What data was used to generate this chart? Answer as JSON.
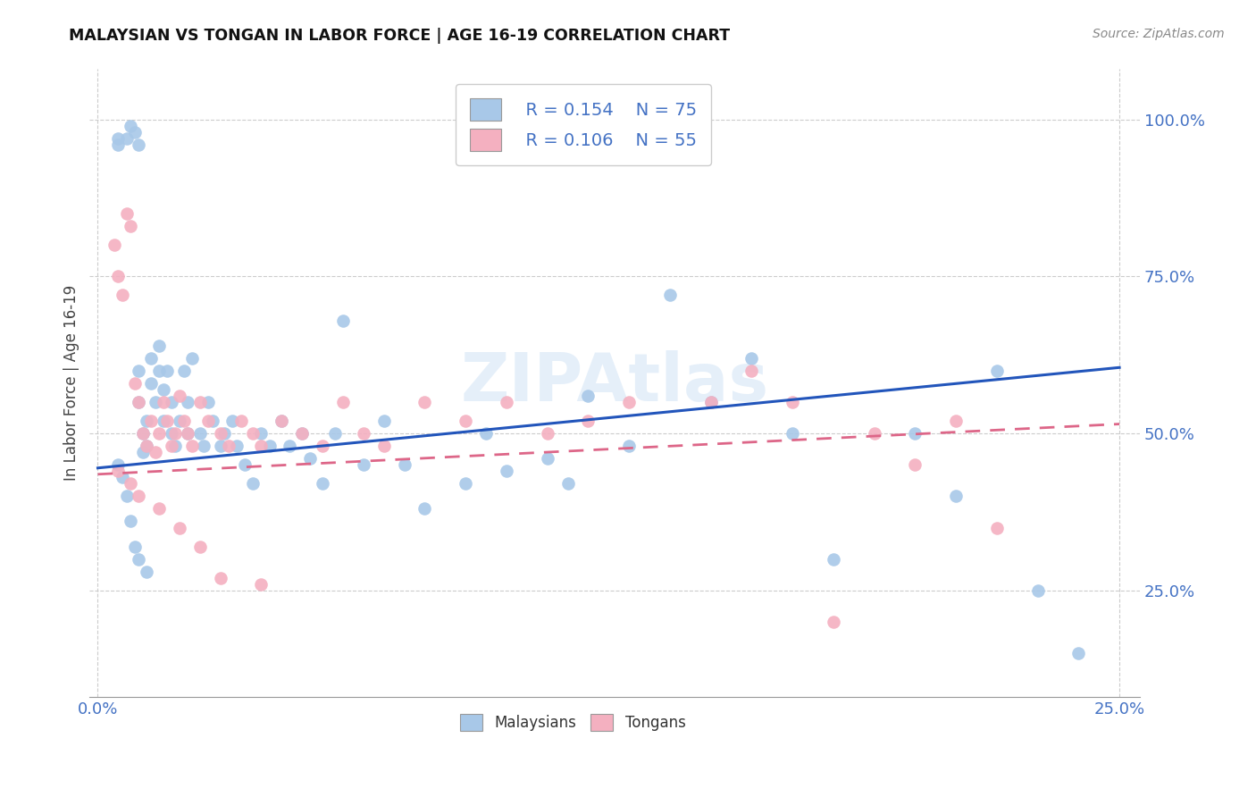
{
  "title": "MALAYSIAN VS TONGAN IN LABOR FORCE | AGE 16-19 CORRELATION CHART",
  "source": "Source: ZipAtlas.com",
  "ylabel": "In Labor Force | Age 16-19",
  "xlim": [
    -0.002,
    0.255
  ],
  "ylim": [
    0.08,
    1.08
  ],
  "ytick_labels": [
    "25.0%",
    "50.0%",
    "75.0%",
    "100.0%"
  ],
  "ytick_values": [
    0.25,
    0.5,
    0.75,
    1.0
  ],
  "xtick_labels": [
    "0.0%",
    "25.0%"
  ],
  "xtick_values": [
    0.0,
    0.25
  ],
  "malaysian_color": "#a8c8e8",
  "tongan_color": "#f4b0c0",
  "malaysian_line_color": "#2255bb",
  "tongan_line_color": "#dd6688",
  "legend_R_malaysian": "R = 0.154",
  "legend_N_malaysian": "N = 75",
  "legend_R_tongan": "R = 0.106",
  "legend_N_tongan": "N = 55",
  "watermark": "ZIPAtlas",
  "malaysian_scatter_x": [
    0.005,
    0.005,
    0.007,
    0.008,
    0.009,
    0.01,
    0.01,
    0.01,
    0.011,
    0.011,
    0.012,
    0.012,
    0.013,
    0.013,
    0.014,
    0.015,
    0.015,
    0.016,
    0.016,
    0.017,
    0.018,
    0.018,
    0.019,
    0.02,
    0.021,
    0.022,
    0.022,
    0.023,
    0.025,
    0.026,
    0.027,
    0.028,
    0.03,
    0.031,
    0.033,
    0.034,
    0.036,
    0.038,
    0.04,
    0.042,
    0.045,
    0.047,
    0.05,
    0.052,
    0.055,
    0.058,
    0.06,
    0.065,
    0.07,
    0.075,
    0.08,
    0.09,
    0.095,
    0.1,
    0.11,
    0.115,
    0.12,
    0.13,
    0.14,
    0.15,
    0.16,
    0.17,
    0.18,
    0.2,
    0.21,
    0.22,
    0.23,
    0.24,
    0.005,
    0.006,
    0.007,
    0.008,
    0.009,
    0.01,
    0.012
  ],
  "malaysian_scatter_y": [
    0.97,
    0.96,
    0.97,
    0.99,
    0.98,
    0.96,
    0.6,
    0.55,
    0.5,
    0.47,
    0.52,
    0.48,
    0.62,
    0.58,
    0.55,
    0.64,
    0.6,
    0.57,
    0.52,
    0.6,
    0.55,
    0.5,
    0.48,
    0.52,
    0.6,
    0.55,
    0.5,
    0.62,
    0.5,
    0.48,
    0.55,
    0.52,
    0.48,
    0.5,
    0.52,
    0.48,
    0.45,
    0.42,
    0.5,
    0.48,
    0.52,
    0.48,
    0.5,
    0.46,
    0.42,
    0.5,
    0.68,
    0.45,
    0.52,
    0.45,
    0.38,
    0.42,
    0.5,
    0.44,
    0.46,
    0.42,
    0.56,
    0.48,
    0.72,
    0.55,
    0.62,
    0.5,
    0.3,
    0.5,
    0.4,
    0.6,
    0.25,
    0.15,
    0.45,
    0.43,
    0.4,
    0.36,
    0.32,
    0.3,
    0.28
  ],
  "tongan_scatter_x": [
    0.004,
    0.005,
    0.006,
    0.007,
    0.008,
    0.009,
    0.01,
    0.011,
    0.012,
    0.013,
    0.014,
    0.015,
    0.016,
    0.017,
    0.018,
    0.019,
    0.02,
    0.021,
    0.022,
    0.023,
    0.025,
    0.027,
    0.03,
    0.032,
    0.035,
    0.038,
    0.04,
    0.045,
    0.05,
    0.055,
    0.06,
    0.065,
    0.07,
    0.08,
    0.09,
    0.1,
    0.11,
    0.12,
    0.13,
    0.15,
    0.16,
    0.17,
    0.18,
    0.19,
    0.2,
    0.21,
    0.22,
    0.005,
    0.008,
    0.01,
    0.015,
    0.02,
    0.025,
    0.03,
    0.04
  ],
  "tongan_scatter_y": [
    0.8,
    0.75,
    0.72,
    0.85,
    0.83,
    0.58,
    0.55,
    0.5,
    0.48,
    0.52,
    0.47,
    0.5,
    0.55,
    0.52,
    0.48,
    0.5,
    0.56,
    0.52,
    0.5,
    0.48,
    0.55,
    0.52,
    0.5,
    0.48,
    0.52,
    0.5,
    0.48,
    0.52,
    0.5,
    0.48,
    0.55,
    0.5,
    0.48,
    0.55,
    0.52,
    0.55,
    0.5,
    0.52,
    0.55,
    0.55,
    0.6,
    0.55,
    0.2,
    0.5,
    0.45,
    0.52,
    0.35,
    0.44,
    0.42,
    0.4,
    0.38,
    0.35,
    0.32,
    0.27,
    0.26
  ],
  "malaysian_trend_x": [
    0.0,
    0.25
  ],
  "malaysian_trend_y": [
    0.445,
    0.605
  ],
  "tongan_trend_x": [
    0.0,
    0.25
  ],
  "tongan_trend_y": [
    0.435,
    0.515
  ],
  "grid_color": "#cccccc",
  "label_color": "#4472c4",
  "tick_color": "#333333",
  "background_color": "#ffffff"
}
